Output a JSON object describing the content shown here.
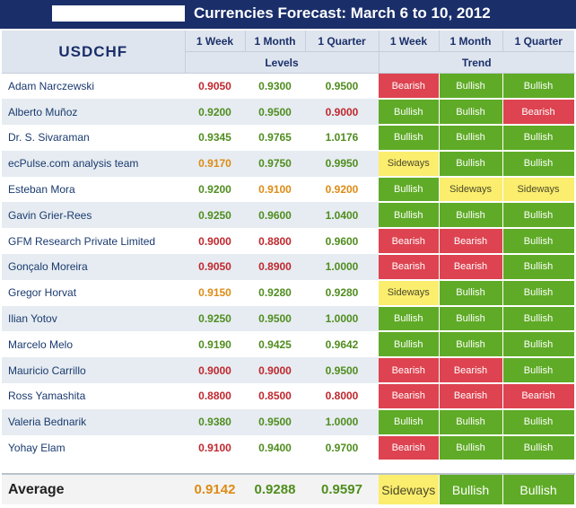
{
  "title": "Currencies Forecast: March 6 to 10, 2012",
  "symbol": "USDCHF",
  "headers": {
    "periods": [
      "1 Week",
      "1 Month",
      "1 Quarter"
    ],
    "levels": "Levels",
    "trend": "Trend"
  },
  "colors": {
    "navy": "#1a2f6a",
    "bearish_bg": "#dd4350",
    "bullish_bg": "#5fab27",
    "sideways_bg": "#fbed6e",
    "level_red": "#c0272d",
    "level_green": "#4f8d1e",
    "level_orange": "#dd8b14"
  },
  "rows": [
    {
      "name": "Adam Narczewski",
      "levels": [
        "0.9050",
        "0.9300",
        "0.9500"
      ],
      "level_colors": [
        "red",
        "green",
        "green"
      ],
      "trend": [
        "Bearish",
        "Bullish",
        "Bullish"
      ]
    },
    {
      "name": "Alberto Muñoz",
      "levels": [
        "0.9200",
        "0.9500",
        "0.9000"
      ],
      "level_colors": [
        "green",
        "green",
        "red"
      ],
      "trend": [
        "Bullish",
        "Bullish",
        "Bearish"
      ]
    },
    {
      "name": "Dr. S. Sivaraman",
      "levels": [
        "0.9345",
        "0.9765",
        "1.0176"
      ],
      "level_colors": [
        "green",
        "green",
        "green"
      ],
      "trend": [
        "Bullish",
        "Bullish",
        "Bullish"
      ]
    },
    {
      "name": "ecPulse.com analysis team",
      "levels": [
        "0.9170",
        "0.9750",
        "0.9950"
      ],
      "level_colors": [
        "orange",
        "green",
        "green"
      ],
      "trend": [
        "Sideways",
        "Bullish",
        "Bullish"
      ]
    },
    {
      "name": "Esteban Mora",
      "levels": [
        "0.9200",
        "0.9100",
        "0.9200"
      ],
      "level_colors": [
        "green",
        "orange",
        "orange"
      ],
      "trend": [
        "Bullish",
        "Sideways",
        "Sideways"
      ]
    },
    {
      "name": "Gavin Grier-Rees",
      "levels": [
        "0.9250",
        "0.9600",
        "1.0400"
      ],
      "level_colors": [
        "green",
        "green",
        "green"
      ],
      "trend": [
        "Bullish",
        "Bullish",
        "Bullish"
      ]
    },
    {
      "name": "GFM Research Private Limited",
      "levels": [
        "0.9000",
        "0.8800",
        "0.9600"
      ],
      "level_colors": [
        "red",
        "red",
        "green"
      ],
      "trend": [
        "Bearish",
        "Bearish",
        "Bullish"
      ]
    },
    {
      "name": "Gonçalo Moreira",
      "levels": [
        "0.9050",
        "0.8900",
        "1.0000"
      ],
      "level_colors": [
        "red",
        "red",
        "green"
      ],
      "trend": [
        "Bearish",
        "Bearish",
        "Bullish"
      ]
    },
    {
      "name": "Gregor Horvat",
      "levels": [
        "0.9150",
        "0.9280",
        "0.9280"
      ],
      "level_colors": [
        "orange",
        "green",
        "green"
      ],
      "trend": [
        "Sideways",
        "Bullish",
        "Bullish"
      ]
    },
    {
      "name": "Ilian Yotov",
      "levels": [
        "0.9250",
        "0.9500",
        "1.0000"
      ],
      "level_colors": [
        "green",
        "green",
        "green"
      ],
      "trend": [
        "Bullish",
        "Bullish",
        "Bullish"
      ]
    },
    {
      "name": "Marcelo Melo",
      "levels": [
        "0.9190",
        "0.9425",
        "0.9642"
      ],
      "level_colors": [
        "green",
        "green",
        "green"
      ],
      "trend": [
        "Bullish",
        "Bullish",
        "Bullish"
      ]
    },
    {
      "name": "Mauricio Carrillo",
      "levels": [
        "0.9000",
        "0.9000",
        "0.9500"
      ],
      "level_colors": [
        "red",
        "red",
        "green"
      ],
      "trend": [
        "Bearish",
        "Bearish",
        "Bullish"
      ]
    },
    {
      "name": "Ross Yamashita",
      "levels": [
        "0.8800",
        "0.8500",
        "0.8000"
      ],
      "level_colors": [
        "red",
        "red",
        "red"
      ],
      "trend": [
        "Bearish",
        "Bearish",
        "Bearish"
      ]
    },
    {
      "name": "Valeria Bednarik",
      "levels": [
        "0.9380",
        "0.9500",
        "1.0000"
      ],
      "level_colors": [
        "green",
        "green",
        "green"
      ],
      "trend": [
        "Bullish",
        "Bullish",
        "Bullish"
      ]
    },
    {
      "name": "Yohay Elam",
      "levels": [
        "0.9100",
        "0.9400",
        "0.9700"
      ],
      "level_colors": [
        "red",
        "green",
        "green"
      ],
      "trend": [
        "Bearish",
        "Bullish",
        "Bullish"
      ]
    }
  ],
  "average": {
    "label": "Average",
    "levels": [
      "0.9142",
      "0.9288",
      "0.9597"
    ],
    "level_colors": [
      "orange",
      "green",
      "green"
    ],
    "trend": [
      "Sideways",
      "Bullish",
      "Bullish"
    ]
  }
}
